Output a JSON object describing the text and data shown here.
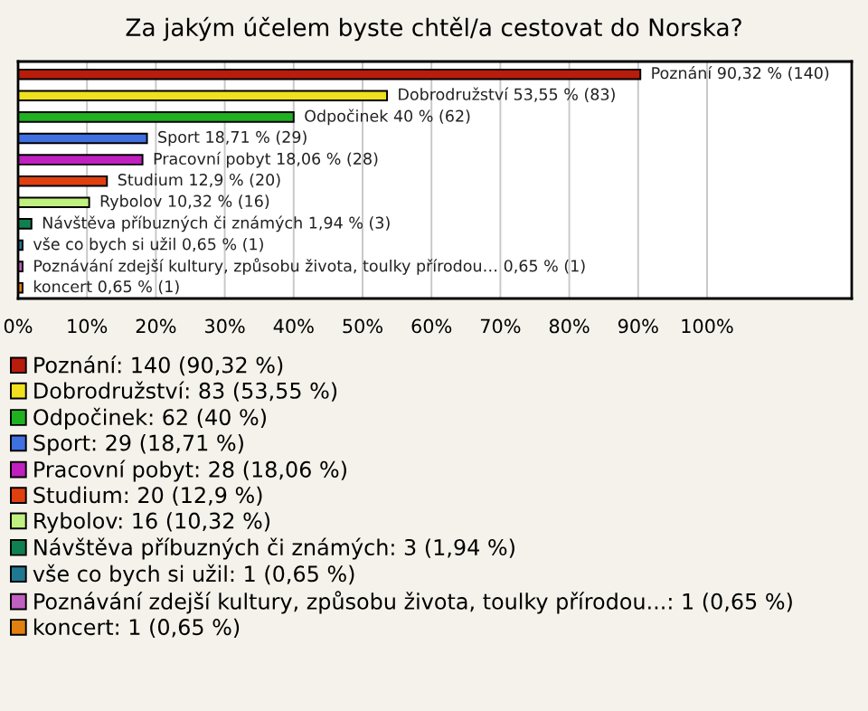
{
  "chart_data": {
    "type": "bar",
    "orientation": "horizontal",
    "title": "Za jakým účelem byste chtěl/a cestovat do Norska?",
    "categories": [
      null,
      null,
      null,
      null,
      null,
      null,
      null,
      null,
      null,
      null,
      null
    ],
    "series": [
      {
        "name": "Poznání: 140 (90,32 %)",
        "color": "#b81c0c",
        "values": [
          90.32,
          null,
          null,
          null,
          null,
          null,
          null,
          null,
          null,
          null,
          null
        ],
        "value_labels": [
          "Poznání 90,32 % (140)",
          null,
          null,
          null,
          null,
          null,
          null,
          null,
          null,
          null,
          null
        ]
      },
      {
        "name": "Dobrodružství: 83 (53,55 %)",
        "color": "#f0e020",
        "values": [
          null,
          53.55,
          null,
          null,
          null,
          null,
          null,
          null,
          null,
          null,
          null
        ],
        "value_labels": [
          null,
          "Dobrodružství 53,55 % (83)",
          null,
          null,
          null,
          null,
          null,
          null,
          null,
          null,
          null
        ]
      },
      {
        "name": "Odpočinek: 62 (40 %)",
        "color": "#20b020",
        "values": [
          null,
          null,
          40,
          null,
          null,
          null,
          null,
          null,
          null,
          null,
          null
        ],
        "value_labels": [
          null,
          null,
          "Odpočinek 40 % (62)",
          null,
          null,
          null,
          null,
          null,
          null,
          null,
          null
        ]
      },
      {
        "name": "Sport: 29 (18,71 %)",
        "color": "#4070e0",
        "values": [
          null,
          null,
          null,
          18.71,
          null,
          null,
          null,
          null,
          null,
          null,
          null
        ],
        "value_labels": [
          null,
          null,
          null,
          "Sport 18,71 % (29)",
          null,
          null,
          null,
          null,
          null,
          null,
          null
        ]
      },
      {
        "name": "Pracovní pobyt: 28 (18,06 %)",
        "color": "#c020c0",
        "values": [
          null,
          null,
          null,
          null,
          18.06,
          null,
          null,
          null,
          null,
          null,
          null
        ],
        "value_labels": [
          null,
          null,
          null,
          null,
          "Pracovní pobyt 18,06 % (28)",
          null,
          null,
          null,
          null,
          null,
          null
        ]
      },
      {
        "name": "Studium: 20 (12,9 %)",
        "color": "#e04010",
        "values": [
          null,
          null,
          null,
          null,
          null,
          12.9,
          null,
          null,
          null,
          null,
          null
        ],
        "value_labels": [
          null,
          null,
          null,
          null,
          null,
          "Studium 12,9 % (20)",
          null,
          null,
          null,
          null,
          null
        ]
      },
      {
        "name": "Rybolov: 16 (10,32 %)",
        "color": "#c0f080",
        "values": [
          null,
          null,
          null,
          null,
          null,
          null,
          10.32,
          null,
          null,
          null,
          null
        ],
        "value_labels": [
          null,
          null,
          null,
          null,
          null,
          null,
          "Rybolov 10,32 % (16)",
          null,
          null,
          null,
          null
        ]
      },
      {
        "name": "Návštěva příbuzných či známých: 3 (1,94 %)",
        "color": "#108050",
        "values": [
          null,
          null,
          null,
          null,
          null,
          null,
          null,
          1.94,
          null,
          null,
          null
        ],
        "value_labels": [
          null,
          null,
          null,
          null,
          null,
          null,
          null,
          "Návštěva příbuzných či známých 1,94 % (3)",
          null,
          null,
          null
        ]
      },
      {
        "name": "vše co bych si užil: 1 (0,65 %)",
        "color": "#207890",
        "values": [
          null,
          null,
          null,
          null,
          null,
          null,
          null,
          null,
          0.65,
          null,
          null
        ],
        "value_labels": [
          null,
          null,
          null,
          null,
          null,
          null,
          null,
          null,
          "vše co bych si užil 0,65 % (1)",
          null,
          null
        ]
      },
      {
        "name": "Poznávání zdejší kultury, způsobu života, toulky přírodou...: 1 (0,65 %)",
        "color": "#c060c0",
        "values": [
          null,
          null,
          null,
          null,
          null,
          null,
          null,
          null,
          null,
          0.65,
          null
        ],
        "value_labels": [
          null,
          null,
          null,
          null,
          null,
          null,
          null,
          null,
          null,
          "Poznávání zdejší kultury, způsobu života, toulky přírodou… 0,65 % (1)",
          null
        ]
      },
      {
        "name": "koncert: 1 (0,65 %)",
        "color": "#e08010",
        "values": [
          null,
          null,
          null,
          null,
          null,
          null,
          null,
          null,
          null,
          null,
          0.65
        ],
        "value_labels": [
          null,
          null,
          null,
          null,
          null,
          null,
          null,
          null,
          null,
          null,
          "koncert 0,65 % (1)"
        ]
      }
    ],
    "xlim": [
      0,
      121
    ],
    "xticks": [
      {
        "value": 0,
        "label": "0%"
      },
      {
        "value": 10,
        "label": "10%"
      },
      {
        "value": 20,
        "label": "20%"
      },
      {
        "value": 30,
        "label": "30%"
      },
      {
        "value": 40,
        "label": "40%"
      },
      {
        "value": 50,
        "label": "50%"
      },
      {
        "value": 60,
        "label": "60%"
      },
      {
        "value": 70,
        "label": "70%"
      },
      {
        "value": 80,
        "label": "80%"
      },
      {
        "value": 90,
        "label": "90%"
      },
      {
        "value": 100,
        "label": "100%"
      }
    ],
    "grid": "x",
    "legend": "bottom"
  }
}
